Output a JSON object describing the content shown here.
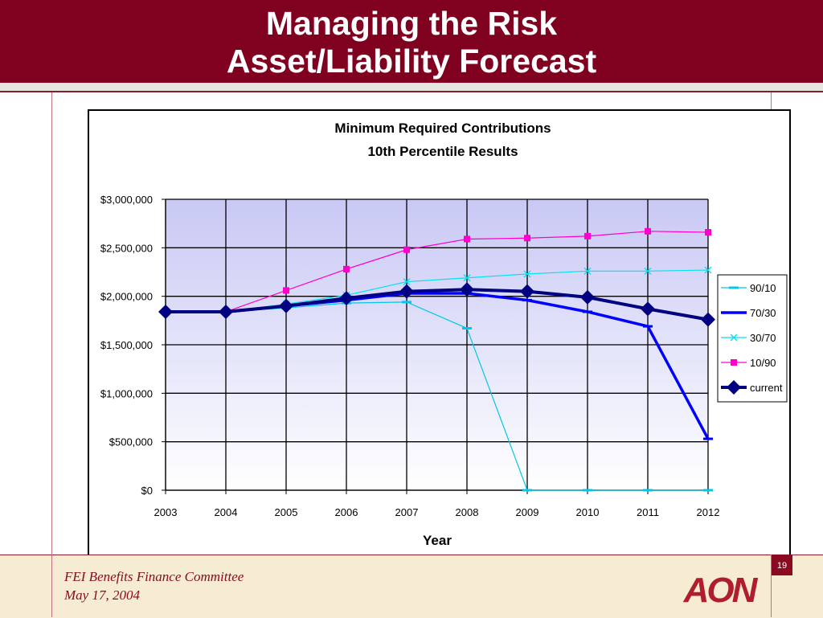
{
  "slide": {
    "title_line1": "Managing the Risk",
    "title_line2": "Asset/Liability Forecast",
    "footer_line1": "FEI Benefits Finance Committee",
    "footer_line2": "May 17, 2004",
    "page_number": "19",
    "logo_text": "AON"
  },
  "colors": {
    "title_bar": "#800020",
    "footer_bg": "#f6ecd4",
    "brand_red": "#b01e2d"
  },
  "chart_data": {
    "type": "line",
    "title": "Minimum Required Contributions",
    "subtitle": "10th Percentile Results",
    "xlabel": "Year",
    "ylabel": "",
    "x": [
      "2003",
      "2004",
      "2005",
      "2006",
      "2007",
      "2008",
      "2009",
      "2010",
      "2011",
      "2012"
    ],
    "ylim": [
      0,
      3000000
    ],
    "yticks": [
      {
        "value": 0,
        "label": "$0"
      },
      {
        "value": 500000,
        "label": "$500,000"
      },
      {
        "value": 1000000,
        "label": "$1,000,000"
      },
      {
        "value": 1500000,
        "label": "$1,500,000"
      },
      {
        "value": 2000000,
        "label": "$2,000,000"
      },
      {
        "value": 2500000,
        "label": "$2,500,000"
      },
      {
        "value": 3000000,
        "label": "$3,000,000"
      }
    ],
    "grid": true,
    "legend_position": "right",
    "series": [
      {
        "name": "90/10",
        "color": "#00c8e8",
        "marker": "dash",
        "width": 1.2,
        "values": [
          1840000,
          1840000,
          1880000,
          1930000,
          1940000,
          1670000,
          0,
          0,
          0,
          0
        ]
      },
      {
        "name": "70/30",
        "color": "#0000ff",
        "marker": "dash",
        "width": 3.5,
        "values": [
          1840000,
          1840000,
          1900000,
          1960000,
          2030000,
          2030000,
          1960000,
          1840000,
          1690000,
          530000
        ]
      },
      {
        "name": "30/70",
        "color": "#00e0f0",
        "marker": "x",
        "width": 1.2,
        "values": [
          1840000,
          1840000,
          1920000,
          2010000,
          2150000,
          2190000,
          2230000,
          2260000,
          2260000,
          2270000
        ]
      },
      {
        "name": "10/90",
        "color": "#ff00cc",
        "marker": "square",
        "width": 1.2,
        "values": [
          1840000,
          1840000,
          2060000,
          2280000,
          2480000,
          2590000,
          2600000,
          2620000,
          2670000,
          2660000
        ]
      },
      {
        "name": "current",
        "color": "#000080",
        "marker": "diamond",
        "width": 4,
        "values": [
          1840000,
          1840000,
          1900000,
          1980000,
          2050000,
          2070000,
          2050000,
          1990000,
          1870000,
          1760000
        ]
      }
    ]
  }
}
